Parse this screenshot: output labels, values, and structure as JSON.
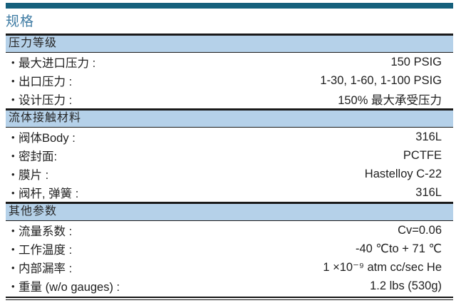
{
  "document": {
    "title": "规格"
  },
  "colors": {
    "accent_bar": "#16607C",
    "title_text": "#3E7BA3",
    "section_header_bg": "#B5D1E9",
    "rule": "#1A1A1A",
    "body_text": "#1F1F1F"
  },
  "icons": {
    "bullet": "•"
  },
  "sections": [
    {
      "header": "压力等级",
      "rows": [
        {
          "label": "最大进口压力 :",
          "value": "150 PSIG"
        },
        {
          "label": "出口压力 :",
          "value": "1-30, 1-60, 1-100 PSIG"
        },
        {
          "label": "设计压力 :",
          "value": "150% 最大承受压力"
        }
      ]
    },
    {
      "header": "流体接触材料",
      "rows": [
        {
          "label": "阀体Body :",
          "value": "316L"
        },
        {
          "label": "密封面:",
          "value": "PCTFE"
        },
        {
          "label": "膜片 :",
          "value": "Hastelloy C-22"
        },
        {
          "label": "阀杆, 弹簧 :",
          "value": "316L"
        }
      ]
    },
    {
      "header": "其他参数",
      "rows": [
        {
          "label": "流量系数 :",
          "value": "Cv=0.06"
        },
        {
          "label": "工作温度 :",
          "value": "-40 ℃to + 71 ℃"
        },
        {
          "label": "内部漏率 :",
          "value": "1 ×10⁻⁹ atm cc/sec He"
        },
        {
          "label": "重量 (w/o gauges) :",
          "value": "1.2 lbs (530g)"
        }
      ]
    }
  ]
}
